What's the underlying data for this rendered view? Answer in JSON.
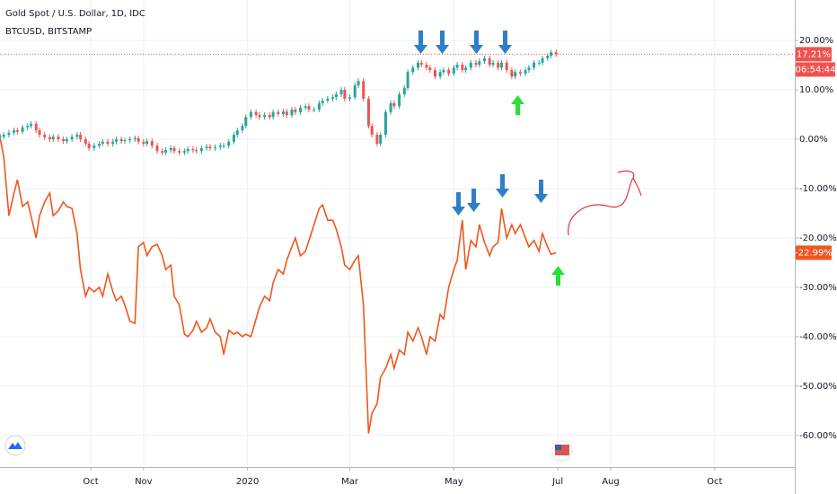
{
  "chart_data": {
    "type": "candlestick_line",
    "x": [
      -53,
      -51,
      -48,
      -45,
      -43,
      -40,
      -37,
      -35,
      -32,
      -30,
      -27,
      -24,
      -22,
      -19,
      -16,
      -14,
      -11,
      -8,
      -6,
      -3,
      -1,
      2,
      5,
      7,
      10,
      13,
      15,
      18,
      20,
      23,
      26,
      28,
      31,
      33,
      36,
      39,
      42,
      44,
      47,
      49,
      52,
      55,
      57,
      60,
      62,
      65,
      68,
      70,
      73,
      76,
      78,
      81,
      84,
      86,
      89,
      91,
      94,
      97,
      99,
      102,
      105,
      107,
      110,
      113,
      115,
      118,
      120,
      123,
      126,
      128,
      131,
      134,
      136,
      139,
      142,
      144,
      147,
      149,
      152,
      155,
      157,
      160,
      163,
      165,
      168,
      170,
      173,
      176,
      178,
      181,
      184,
      186,
      189,
      192,
      194,
      197,
      199,
      202,
      205,
      207,
      210,
      213,
      215,
      218,
      220,
      223,
      226,
      228,
      231,
      234,
      236,
      239,
      241,
      244,
      247,
      249,
      252,
      255,
      257,
      260,
      263,
      265,
      268,
      270,
      273
    ],
    "series": [
      {
        "name": "Gold Spot / U.S. Dollar, 1D, IDC",
        "up_color": "#26a69a",
        "down_color": "#ef5350",
        "values": [
          0.5,
          0.9,
          1.3,
          1.8,
          1.5,
          2.4,
          2.7,
          3.1,
          1.8,
          0.9,
          0.4,
          0,
          0.5,
          0,
          -0.4,
          0,
          0.5,
          0.9,
          0,
          -0.9,
          -1.8,
          -1.3,
          -0.9,
          -0.5,
          -0.9,
          -0.5,
          0,
          -0.4,
          -0.2,
          0,
          0.2,
          -0.5,
          -0.9,
          -0.4,
          -1.3,
          -2.4,
          -2.7,
          -2.2,
          -1.8,
          -2.4,
          -2.7,
          -2.4,
          -2.0,
          -2.2,
          -2.4,
          -1.8,
          -1.5,
          -1.8,
          -1.6,
          -1.3,
          -1.3,
          -0.5,
          0.9,
          1.8,
          2.7,
          4.5,
          5.5,
          4.9,
          4.5,
          4.9,
          4.5,
          5.5,
          5.1,
          5.6,
          4.9,
          6.0,
          5.5,
          6.4,
          6.7,
          6.0,
          6.0,
          7.3,
          7.8,
          8.2,
          8.5,
          9.1,
          10.0,
          8.2,
          8.5,
          10.9,
          11.8,
          8.2,
          2.7,
          0.9,
          -0.9,
          0.9,
          5.5,
          7.3,
          6.7,
          9.1,
          10.4,
          13.6,
          14.5,
          15.5,
          15.1,
          14.5,
          14.0,
          12.7,
          13.6,
          14.0,
          13.3,
          14.5,
          15.1,
          14.0,
          14.5,
          15.5,
          15.1,
          15.8,
          16.4,
          15.1,
          15.5,
          14.5,
          15.5,
          14.0,
          12.7,
          13.6,
          13.3,
          14.0,
          14.5,
          15.5,
          15.5,
          16.4,
          16.9,
          17.6,
          17.21
        ]
      },
      {
        "name": "BTCUSD, BITSTAMP",
        "color": "#f0561d",
        "values": [
          0,
          -3.6,
          -15.5,
          -10.9,
          -8.2,
          -13.6,
          -12.7,
          -15.5,
          -20.0,
          -15.5,
          -12.7,
          -10.9,
          -15.5,
          -14.5,
          -12.7,
          -13.6,
          -14.0,
          -19.1,
          -26.4,
          -31.8,
          -30.0,
          -30.9,
          -30.0,
          -31.8,
          -27.3,
          -30.9,
          -32.7,
          -31.8,
          -33.6,
          -36.9,
          -37.3,
          -21.8,
          -20.9,
          -23.6,
          -21.8,
          -21.3,
          -23.6,
          -26.4,
          -25.5,
          -31.8,
          -33.6,
          -39.5,
          -40.0,
          -38.7,
          -36.9,
          -39.1,
          -38.2,
          -36.4,
          -39.1,
          -40.0,
          -43.6,
          -38.7,
          -39.5,
          -39.1,
          -40.0,
          -39.5,
          -40.0,
          -36.4,
          -34.0,
          -31.8,
          -32.7,
          -29.1,
          -26.4,
          -27.3,
          -24.5,
          -21.8,
          -20.0,
          -23.6,
          -22.7,
          -20.5,
          -17.3,
          -14.0,
          -13.3,
          -16.4,
          -16.4,
          -18.2,
          -21.8,
          -25.5,
          -26.4,
          -24.5,
          -23.6,
          -33.6,
          -59.6,
          -55.5,
          -53.6,
          -48.2,
          -46.4,
          -43.6,
          -46.4,
          -42.7,
          -43.6,
          -39.1,
          -40.9,
          -38.2,
          -40.0,
          -43.6,
          -40.0,
          -40.9,
          -35.5,
          -36.4,
          -30.0,
          -26.4,
          -24.5,
          -16.4,
          -26.4,
          -20.5,
          -21.8,
          -17.3,
          -20.9,
          -23.6,
          -21.8,
          -20.9,
          -14.0,
          -20.0,
          -17.3,
          -19.1,
          -17.3,
          -20.0,
          -21.8,
          -20.5,
          -22.7,
          -19.1,
          -21.8,
          -23.3,
          -22.99
        ]
      }
    ],
    "xlim": [
      -53.2,
      413
    ],
    "xticks": [
      {
        "value": 0,
        "label": "Oct"
      },
      {
        "value": 31,
        "label": "Nov"
      },
      {
        "value": 92,
        "label": "2020"
      },
      {
        "value": 152,
        "label": "Mar"
      },
      {
        "value": 213,
        "label": "May"
      },
      {
        "value": 274,
        "label": "Jul"
      },
      {
        "value": 305,
        "label": "Aug"
      },
      {
        "value": 366,
        "label": "Oct"
      }
    ],
    "ylim": [
      -66.4,
      28.2
    ],
    "yticks": [
      {
        "value": 20,
        "label": "20.00%"
      },
      {
        "value": 10,
        "label": "10.00%"
      },
      {
        "value": 0,
        "label": "0.00%"
      },
      {
        "value": -10,
        "label": "-10.00%"
      },
      {
        "value": -20,
        "label": "-20.00%"
      },
      {
        "value": -30,
        "label": "-30.00%"
      },
      {
        "value": -40,
        "label": "-40.00%"
      },
      {
        "value": -50,
        "label": "-50.00%"
      },
      {
        "value": -60,
        "label": "-60.00%"
      }
    ],
    "price_labels": [
      {
        "value": 17.21,
        "label": "17.21%",
        "color": "#ef5350"
      },
      {
        "value": -22.99,
        "label": "-22.99%",
        "color": "#f0561d"
      }
    ],
    "countdown": "06:54:44",
    "grid": true
  }
}
